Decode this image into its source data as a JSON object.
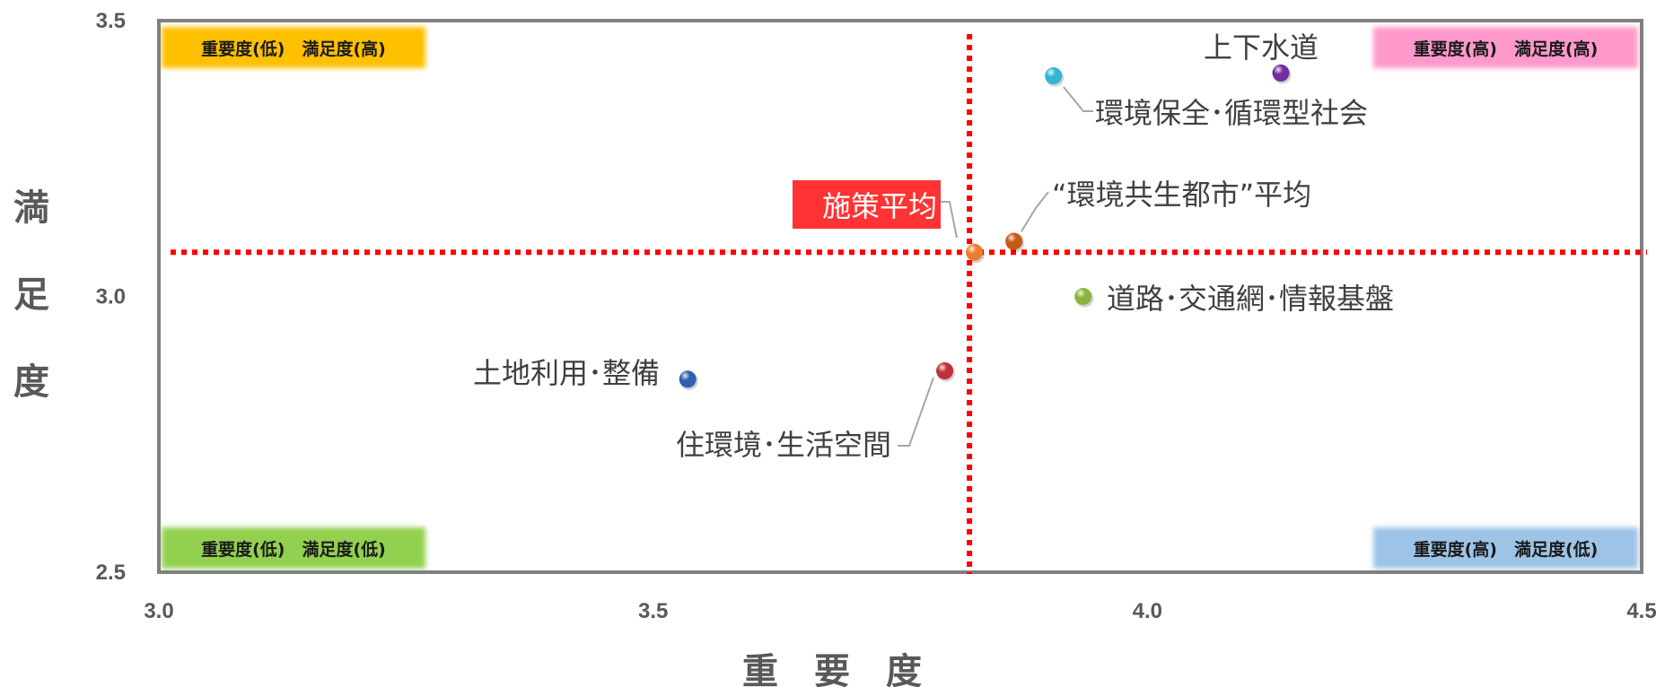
{
  "chart_data": {
    "type": "scatter",
    "xlabel": "重　要　度",
    "ylabel": "満足度",
    "xlim": [
      3.0,
      4.5
    ],
    "ylim": [
      2.5,
      3.5
    ],
    "xticks": [
      "3.0",
      "3.5",
      "4.0",
      "4.5"
    ],
    "yticks": [
      "2.5",
      "3.0",
      "3.5"
    ],
    "reference_lines": {
      "x": 3.82,
      "y": 3.08,
      "color": "#ff0000",
      "style": "dotted"
    },
    "quadrants": [
      {
        "text": "重要度(低)　満足度(高)",
        "position": "top-left",
        "color": "#ffc000"
      },
      {
        "text": "重要度(高)　満足度(高)",
        "position": "top-right",
        "color": "#ff99cc"
      },
      {
        "text": "重要度(低)　満足度(低)",
        "position": "bottom-left",
        "color": "#92d050"
      },
      {
        "text": "重要度(高)　満足度(低)",
        "position": "bottom-right",
        "color": "#9dc3e6"
      }
    ],
    "points": [
      {
        "label": "上下水道",
        "x": 4.135,
        "y": 3.405,
        "color": "#7030a0",
        "leader": false
      },
      {
        "label": "環境保全･循環型社会",
        "x": 3.905,
        "y": 3.4,
        "color": "#2fb5d6",
        "leader": true
      },
      {
        "label": "“環境共生都市”平均",
        "x": 3.865,
        "y": 3.1,
        "color": "#c55a11",
        "leader": true
      },
      {
        "label": "施策平均",
        "x": 3.825,
        "y": 3.08,
        "color": "#ed7d31",
        "leader": true,
        "highlight": "#ff3333"
      },
      {
        "label": "道路･交通網･情報基盤",
        "x": 3.935,
        "y": 3.0,
        "color": "#8cb43c",
        "leader": false
      },
      {
        "label": "土地利用･整備",
        "x": 3.535,
        "y": 2.85,
        "color": "#2e5fb0",
        "leader": false
      },
      {
        "label": "住環境･生活空間",
        "x": 3.795,
        "y": 2.865,
        "color": "#c0303a",
        "leader": true
      }
    ]
  }
}
